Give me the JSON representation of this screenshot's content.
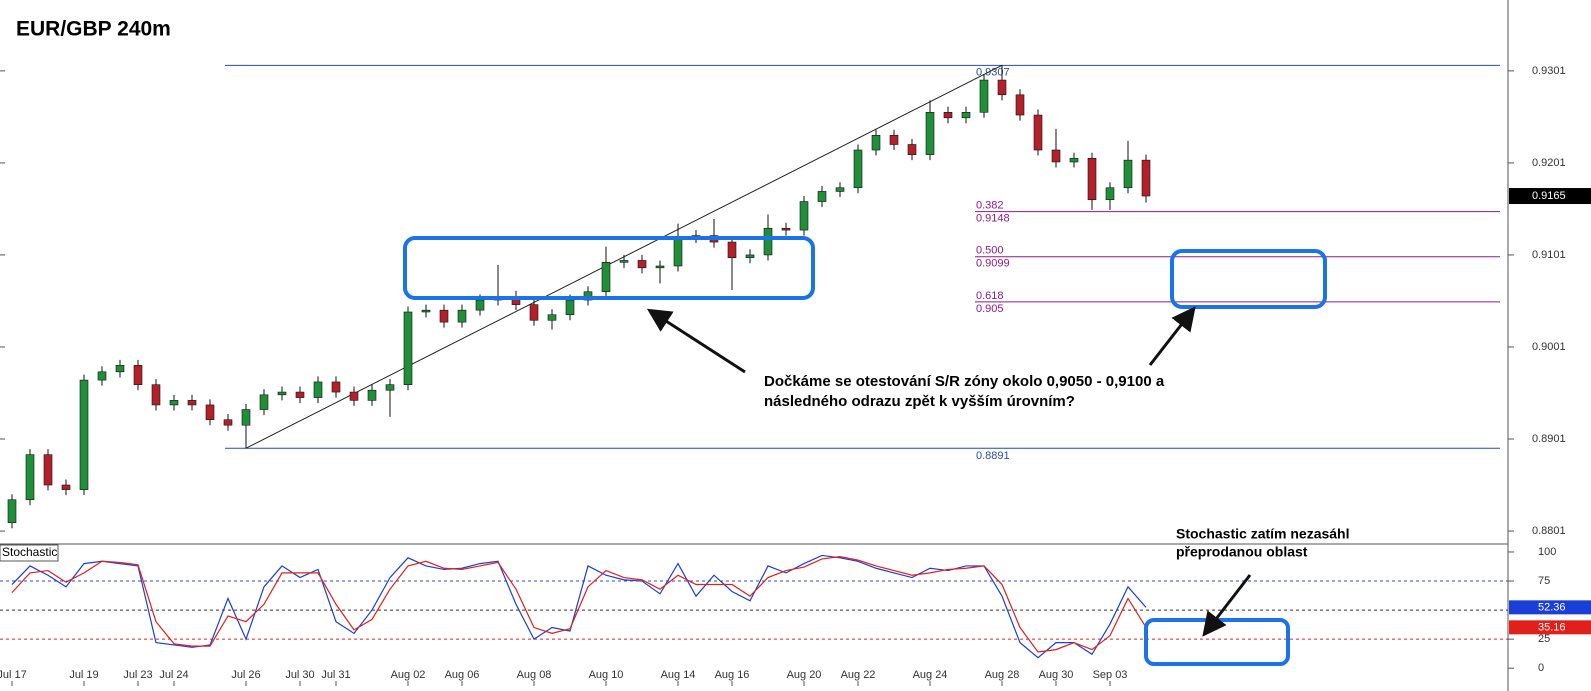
{
  "chart_data": [
    {
      "type": "candlestick",
      "title": "EUR/GBP 240m",
      "categories": [
        "Jul 17",
        null,
        null,
        null,
        "Jul 19",
        null,
        null,
        "Jul 23",
        null,
        "Jul 24",
        null,
        null,
        null,
        "Jul 26",
        null,
        null,
        "Jul 30",
        null,
        "Jul 31",
        null,
        null,
        null,
        "Aug 02",
        null,
        null,
        "Aug 06",
        null,
        null,
        null,
        "Aug 08",
        null,
        null,
        null,
        "Aug 10",
        null,
        null,
        null,
        "Aug 14",
        null,
        null,
        "Aug 16",
        null,
        null,
        null,
        "Aug 20",
        null,
        null,
        "Aug 22",
        null,
        null,
        null,
        "Aug 24",
        null,
        null,
        null,
        "Aug 28",
        null,
        null,
        "Aug 30",
        null,
        null,
        "Sep 03",
        null,
        null
      ],
      "open": [
        0.881,
        0.8835,
        0.8884,
        0.8851,
        0.8846,
        0.8965,
        0.8974,
        0.8981,
        0.896,
        0.8938,
        0.8943,
        0.8938,
        0.8922,
        0.8916,
        0.8933,
        0.8949,
        0.8952,
        0.8946,
        0.8963,
        0.8952,
        0.8943,
        0.8954,
        0.896,
        0.9039,
        0.9041,
        0.9028,
        0.9041,
        0.9052,
        0.9056,
        0.9047,
        0.903,
        0.9036,
        0.9052,
        0.9061,
        0.9093,
        0.9095,
        0.9087,
        0.9089,
        0.912,
        0.9122,
        0.9115,
        0.9098,
        0.9101,
        0.913,
        0.9128,
        0.9159,
        0.917,
        0.9174,
        0.9215,
        0.9231,
        0.9221,
        0.921,
        0.9256,
        0.925,
        0.9256,
        0.9291,
        0.9275,
        0.9253,
        0.9215,
        0.9202,
        0.9206,
        0.9161,
        0.9174,
        0.9204
      ],
      "high": [
        0.8841,
        0.889,
        0.889,
        0.8857,
        0.8971,
        0.898,
        0.8987,
        0.8987,
        0.8966,
        0.8949,
        0.8949,
        0.8944,
        0.8928,
        0.8939,
        0.8955,
        0.8958,
        0.8958,
        0.8969,
        0.8969,
        0.8958,
        0.896,
        0.8966,
        0.9045,
        0.9047,
        0.9047,
        0.9047,
        0.9058,
        0.909,
        0.9062,
        0.9053,
        0.9042,
        0.9058,
        0.9067,
        0.911,
        0.9101,
        0.9101,
        0.9095,
        0.9135,
        0.9128,
        0.914,
        0.9121,
        0.9107,
        0.9145,
        0.9136,
        0.9165,
        0.9176,
        0.918,
        0.9221,
        0.9237,
        0.9237,
        0.9227,
        0.9269,
        0.9262,
        0.9262,
        0.9297,
        0.9307,
        0.9281,
        0.9259,
        0.9238,
        0.9212,
        0.9212,
        0.918,
        0.9225,
        0.921
      ],
      "low": [
        0.8804,
        0.8829,
        0.8845,
        0.884,
        0.884,
        0.8959,
        0.8968,
        0.8954,
        0.8932,
        0.8932,
        0.8932,
        0.8916,
        0.891,
        0.8891,
        0.8927,
        0.8943,
        0.894,
        0.894,
        0.8946,
        0.8937,
        0.8937,
        0.8925,
        0.8954,
        0.9033,
        0.9022,
        0.9022,
        0.9035,
        0.9046,
        0.9041,
        0.9024,
        0.902,
        0.903,
        0.9046,
        0.9055,
        0.9087,
        0.9081,
        0.907,
        0.9083,
        0.9114,
        0.9109,
        0.9063,
        0.9092,
        0.9095,
        0.9122,
        0.9122,
        0.9153,
        0.9164,
        0.9168,
        0.9209,
        0.9215,
        0.9204,
        0.9204,
        0.9244,
        0.9244,
        0.925,
        0.9269,
        0.9247,
        0.9209,
        0.9196,
        0.9196,
        0.915,
        0.915,
        0.9168,
        0.9158
      ],
      "close": [
        0.8835,
        0.8884,
        0.8851,
        0.8846,
        0.8965,
        0.8974,
        0.8981,
        0.896,
        0.8938,
        0.8943,
        0.8938,
        0.8922,
        0.8916,
        0.8933,
        0.8949,
        0.8952,
        0.8946,
        0.8963,
        0.8952,
        0.8943,
        0.8954,
        0.896,
        0.9039,
        0.9041,
        0.9028,
        0.9041,
        0.9052,
        0.9056,
        0.9047,
        0.903,
        0.9036,
        0.9052,
        0.9061,
        0.9093,
        0.9095,
        0.9087,
        0.9089,
        0.912,
        0.9122,
        0.9115,
        0.9098,
        0.9101,
        0.913,
        0.9128,
        0.9159,
        0.917,
        0.9174,
        0.9215,
        0.9231,
        0.9221,
        0.921,
        0.9256,
        0.925,
        0.9256,
        0.9291,
        0.9275,
        0.9253,
        0.9215,
        0.9202,
        0.9206,
        0.9161,
        0.9174,
        0.9204,
        0.9165
      ],
      "up_color": "#1f8f3a",
      "down_color": "#b3202a",
      "ylim": [
        0.8788,
        0.9378
      ],
      "yticks": [
        0.8801,
        0.8901,
        0.9001,
        0.9101,
        0.9201,
        0.9301
      ],
      "hlines": [
        {
          "value": 0.9307,
          "color": "#2a4d9c"
        },
        {
          "value": 0.8891,
          "color": "#2a4d9c"
        }
      ],
      "fib": [
        {
          "ratio": 0.382,
          "price": 0.9148
        },
        {
          "ratio": {
            "value": 0.5,
            "label": "0.500"
          },
          "price": 0.9099
        },
        {
          "ratio": 0.618,
          "price": 0.905
        }
      ],
      "fib_color": "#8b1a8b",
      "annotations": [
        "Dočkáme se otestování S/R zóny okolo 0,9050 - 0,9100 a",
        "následného odrazu zpět k vyšším úrovním?"
      ]
    },
    {
      "type": "line",
      "title": "Stochastic",
      "series": [
        {
          "color": "#1a3fd6",
          "values": [
            72,
            88,
            80,
            70,
            90,
            92,
            90,
            88,
            22,
            20,
            18,
            20,
            60,
            25,
            70,
            88,
            78,
            85,
            40,
            30,
            50,
            78,
            95,
            88,
            85,
            86,
            90,
            92,
            55,
            25,
            35,
            32,
            88,
            80,
            76,
            75,
            64,
            90,
            62,
            80,
            66,
            58,
            88,
            82,
            90,
            97,
            95,
            92,
            86,
            82,
            78,
            86,
            84,
            88,
            88,
            62,
            22,
            9,
            22,
            22,
            12,
            38,
            70,
            52.36
          ]
        },
        {
          "color": "#e0201a",
          "values": [
            65,
            82,
            84,
            74,
            82,
            92,
            91,
            89,
            40,
            21,
            19,
            19,
            45,
            40,
            55,
            82,
            82,
            82,
            55,
            33,
            42,
            68,
            88,
            92,
            86,
            85,
            88,
            91,
            68,
            35,
            30,
            34,
            70,
            84,
            78,
            76,
            68,
            80,
            72,
            72,
            72,
            62,
            78,
            84,
            87,
            94,
            96,
            93,
            88,
            84,
            80,
            82,
            85,
            86,
            88,
            72,
            35,
            14,
            16,
            22,
            16,
            28,
            60,
            35.16
          ]
        }
      ],
      "ylim": [
        -11,
        106
      ],
      "yticks": [
        0,
        25,
        75,
        100
      ],
      "levels": [
        {
          "value": 75,
          "color": "#3344dd"
        },
        {
          "value": 50,
          "color": "#333333"
        },
        {
          "value": 25,
          "color": "#dd2222"
        }
      ],
      "annotations": [
        "Stochastic zatím nezasáhl",
        "přeprodanou oblast"
      ]
    }
  ]
}
